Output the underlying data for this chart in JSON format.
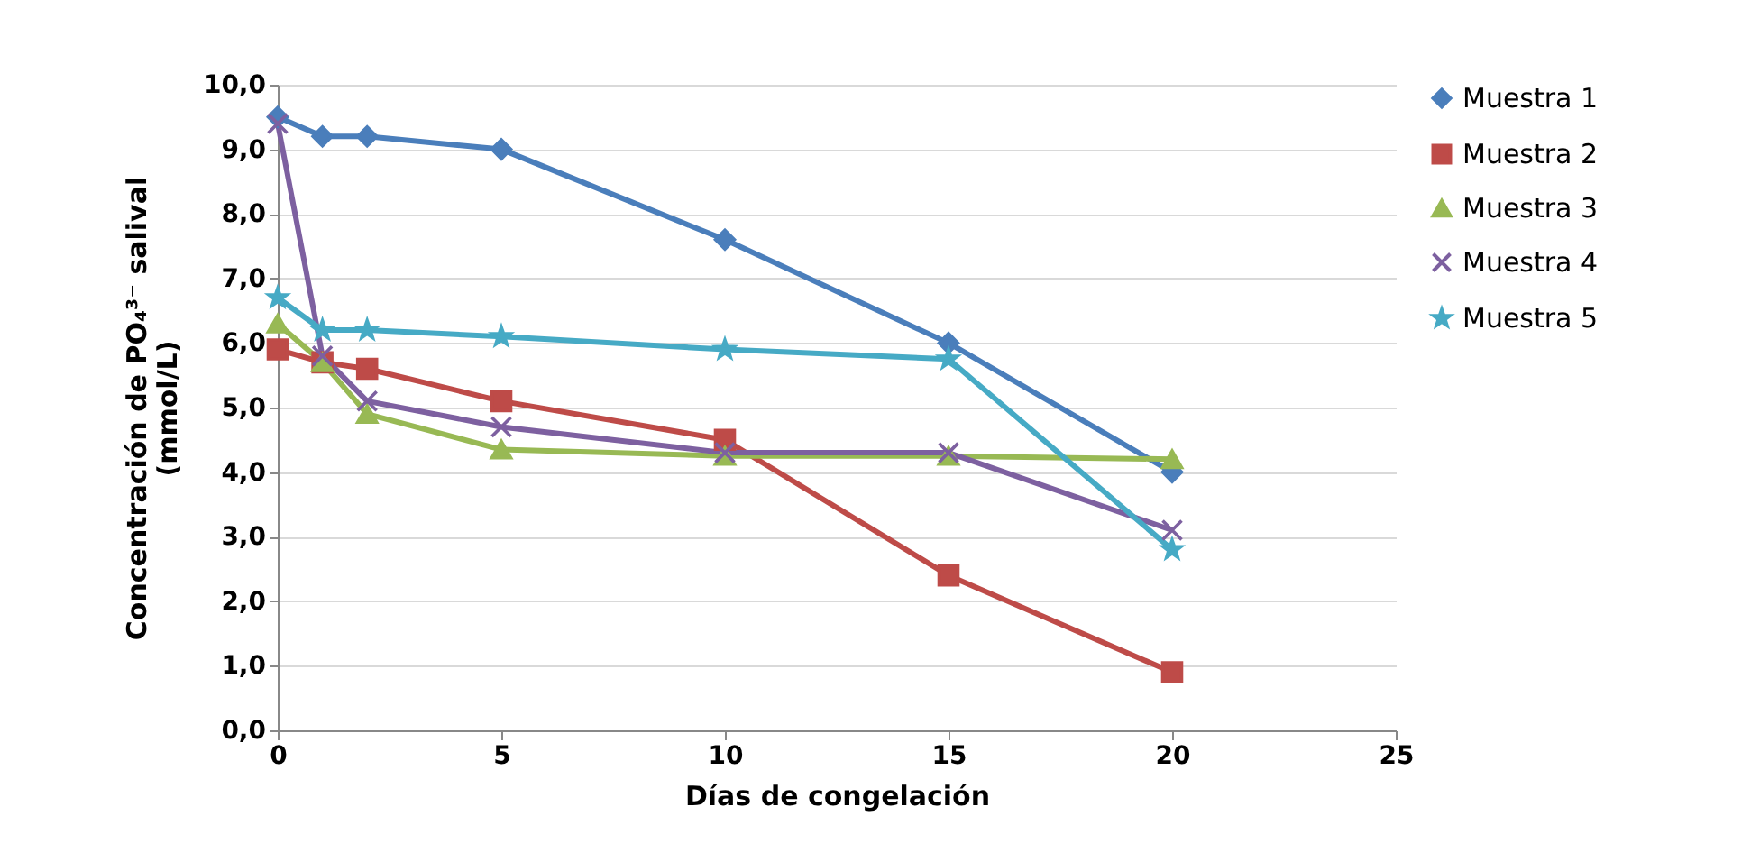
{
  "chart_data": {
    "type": "line",
    "xlabel": "Días de congelación",
    "ylabel": "Concentración de PO₄³⁻ salival\n(mmol/L)",
    "x": [
      0,
      1,
      2,
      5,
      10,
      15,
      20
    ],
    "series": [
      {
        "name": "Muestra 1",
        "color": "#4a7ebb",
        "marker": "diamond",
        "values": [
          9.5,
          9.2,
          9.2,
          9.0,
          7.6,
          6.0,
          4.0
        ]
      },
      {
        "name": "Muestra 2",
        "color": "#be4b48",
        "marker": "square",
        "values": [
          5.9,
          5.7,
          5.6,
          5.1,
          4.5,
          2.4,
          0.9
        ]
      },
      {
        "name": "Muestra 3",
        "color": "#98b954",
        "marker": "triangle",
        "values": [
          6.3,
          5.7,
          4.9,
          4.35,
          4.25,
          4.25,
          4.2
        ]
      },
      {
        "name": "Muestra 4",
        "color": "#7d60a0",
        "marker": "cross",
        "values": [
          9.4,
          5.8,
          5.1,
          4.7,
          4.3,
          4.3,
          3.1
        ]
      },
      {
        "name": "Muestra 5",
        "color": "#46aac5",
        "marker": "star",
        "values": [
          6.7,
          6.2,
          6.2,
          6.1,
          5.9,
          5.75,
          2.8
        ]
      }
    ],
    "xlim": [
      0,
      25
    ],
    "xticks": [
      0,
      5,
      10,
      15,
      20,
      25
    ],
    "ylim": [
      0,
      10
    ],
    "yticks": [
      {
        "value": 0,
        "label": "0,0"
      },
      {
        "value": 1,
        "label": "1,0"
      },
      {
        "value": 2,
        "label": "2,0"
      },
      {
        "value": 3,
        "label": "3,0"
      },
      {
        "value": 4,
        "label": "4,0"
      },
      {
        "value": 5,
        "label": "5,0"
      },
      {
        "value": 6,
        "label": "6,0"
      },
      {
        "value": 7,
        "label": "7,0"
      },
      {
        "value": 8,
        "label": "8,0"
      },
      {
        "value": 9,
        "label": "9,0"
      },
      {
        "value": 10,
        "label": "10,0"
      }
    ],
    "grid": "y",
    "legend": "right"
  }
}
